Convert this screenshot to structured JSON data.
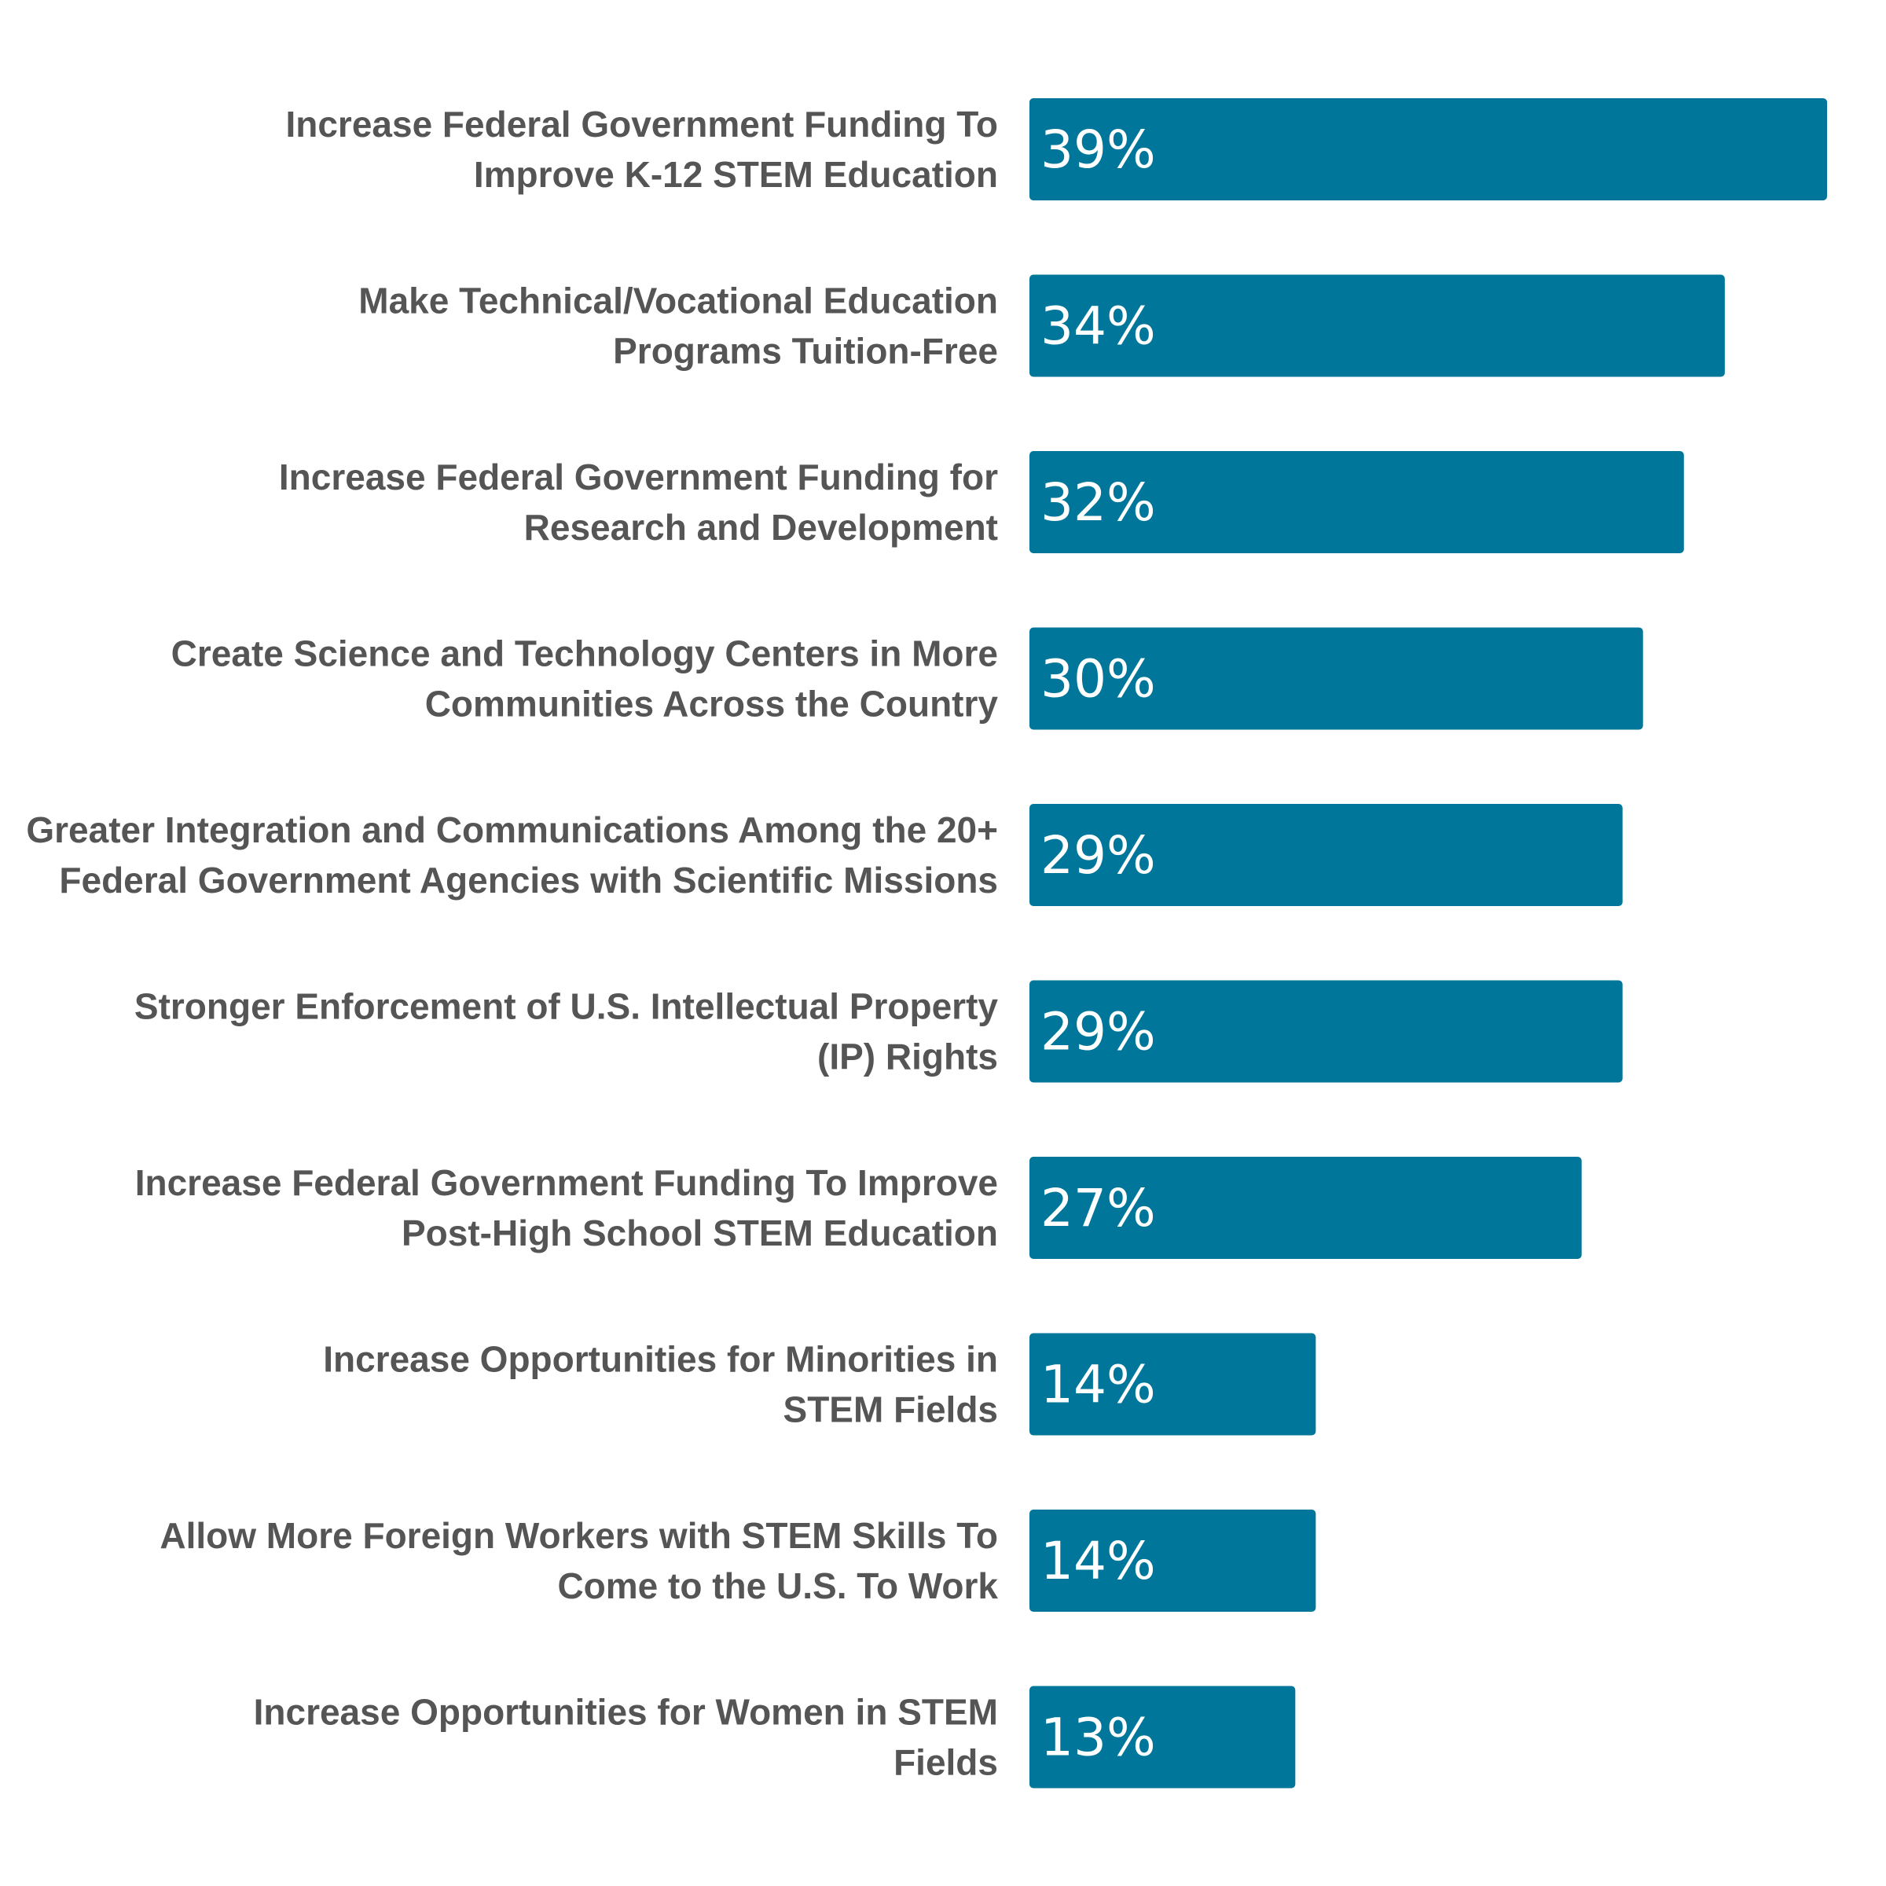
{
  "chart_data": {
    "type": "bar",
    "orientation": "horizontal",
    "bar_color": "#00779a",
    "label_color": "#555555",
    "value_label_color": "#ffffff",
    "categories": [
      [
        "Increase Federal Government Funding To",
        "Improve K-12 STEM Education"
      ],
      [
        "Make Technical/Vocational Education",
        "Programs Tuition-Free"
      ],
      [
        "Increase Federal Government Funding for",
        "Research and Development"
      ],
      [
        "Create Science and Technology Centers in More",
        "Communities Across the Country"
      ],
      [
        "Greater Integration and Communications Among the 20+",
        "Federal Government Agencies with Scientific Missions"
      ],
      [
        "Stronger Enforcement of U.S. Intellectual Property",
        "(IP) Rights"
      ],
      [
        "Increase Federal Government Funding To Improve",
        "Post-High School STEM Education"
      ],
      [
        "Increase Opportunities for Minorities in",
        "STEM Fields"
      ],
      [
        "Allow More Foreign Workers with STEM Skills To",
        "Come to the U.S. To Work"
      ],
      [
        "Increase Opportunities for Women in STEM",
        "Fields"
      ]
    ],
    "values": [
      39,
      34,
      32,
      30,
      29,
      29,
      27,
      14,
      14,
      13
    ],
    "value_labels": [
      "39%",
      "34%",
      "32%",
      "30%",
      "29%",
      "29%",
      "27%",
      "14%",
      "14%",
      "13%"
    ],
    "xlim": [
      0,
      39
    ],
    "grid": false,
    "legend": "none"
  }
}
